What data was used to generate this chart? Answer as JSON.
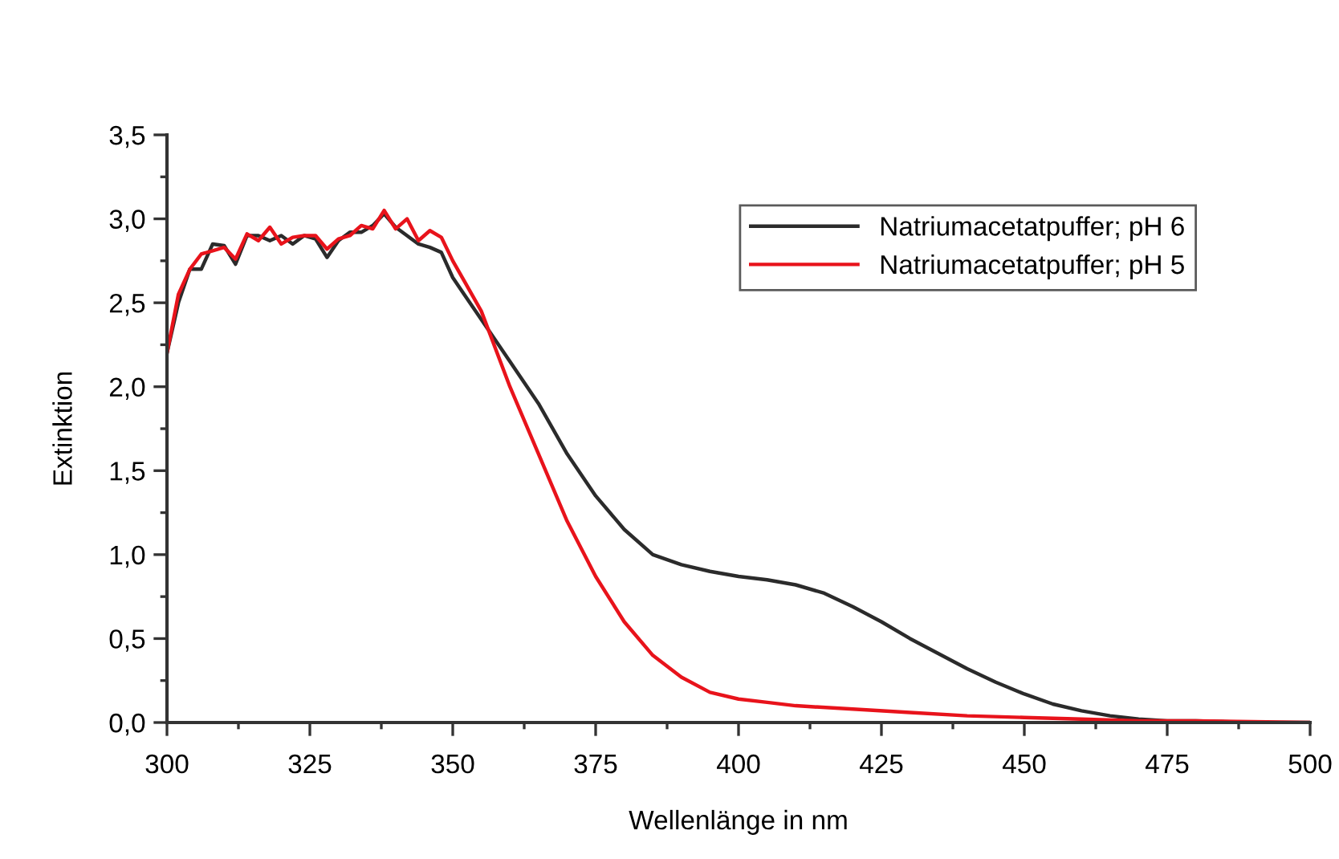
{
  "chart_data": {
    "type": "line",
    "xlabel": "Wellenlänge in nm",
    "ylabel": "Extinktion",
    "xlim": [
      300,
      500
    ],
    "ylim": [
      0,
      3.5
    ],
    "xticks": [
      300,
      325,
      350,
      375,
      400,
      425,
      450,
      475,
      500
    ],
    "yticks": [
      {
        "value": 0,
        "label": "0,0"
      },
      {
        "value": 0.5,
        "label": "0,5"
      },
      {
        "value": 1,
        "label": "1,0"
      },
      {
        "value": 1.5,
        "label": "1,5"
      },
      {
        "value": 2,
        "label": "2,0"
      },
      {
        "value": 2.5,
        "label": "2,5"
      },
      {
        "value": 3,
        "label": "3,0"
      },
      {
        "value": 3.5,
        "label": "3,5"
      }
    ],
    "legend": "top right",
    "grid": false,
    "marker": "none",
    "line_style": "solid",
    "series": [
      {
        "name": "Natriumacetatpuffer; pH 6",
        "color": "#2b2b2b",
        "x": [
          300,
          302,
          304,
          306,
          308,
          310,
          312,
          314,
          316,
          318,
          320,
          322,
          324,
          326,
          328,
          330,
          332,
          334,
          336,
          338,
          340,
          342,
          344,
          346,
          348,
          350,
          352,
          355,
          360,
          365,
          370,
          375,
          380,
          385,
          390,
          395,
          400,
          405,
          410,
          415,
          420,
          425,
          430,
          435,
          440,
          445,
          450,
          455,
          460,
          465,
          470,
          475,
          480,
          490,
          500
        ],
        "values": [
          2.2,
          2.5,
          2.7,
          2.7,
          2.85,
          2.84,
          2.73,
          2.9,
          2.9,
          2.87,
          2.9,
          2.85,
          2.9,
          2.88,
          2.77,
          2.87,
          2.92,
          2.92,
          2.96,
          3.03,
          2.95,
          2.9,
          2.85,
          2.83,
          2.8,
          2.65,
          2.55,
          2.4,
          2.15,
          1.9,
          1.6,
          1.35,
          1.15,
          1.0,
          0.94,
          0.9,
          0.87,
          0.85,
          0.82,
          0.77,
          0.69,
          0.6,
          0.5,
          0.41,
          0.32,
          0.24,
          0.17,
          0.11,
          0.07,
          0.04,
          0.02,
          0.01,
          0.01,
          0,
          0
        ]
      },
      {
        "name": "Natriumacetatpuffer; pH 5",
        "color": "#e8131b",
        "x": [
          300,
          302,
          304,
          306,
          308,
          310,
          312,
          314,
          316,
          318,
          320,
          322,
          324,
          326,
          328,
          330,
          332,
          334,
          336,
          338,
          340,
          342,
          344,
          346,
          348,
          350,
          352,
          355,
          360,
          365,
          370,
          375,
          380,
          385,
          390,
          395,
          400,
          405,
          410,
          420,
          430,
          440,
          450,
          460,
          470,
          480,
          500
        ],
        "values": [
          2.2,
          2.55,
          2.7,
          2.79,
          2.81,
          2.83,
          2.76,
          2.91,
          2.87,
          2.95,
          2.85,
          2.89,
          2.9,
          2.9,
          2.82,
          2.88,
          2.9,
          2.96,
          2.94,
          3.05,
          2.94,
          3.0,
          2.87,
          2.93,
          2.89,
          2.75,
          2.63,
          2.45,
          2.0,
          1.6,
          1.2,
          0.87,
          0.6,
          0.4,
          0.27,
          0.18,
          0.14,
          0.12,
          0.1,
          0.08,
          0.06,
          0.04,
          0.03,
          0.02,
          0.01,
          0.01,
          0
        ]
      }
    ]
  }
}
